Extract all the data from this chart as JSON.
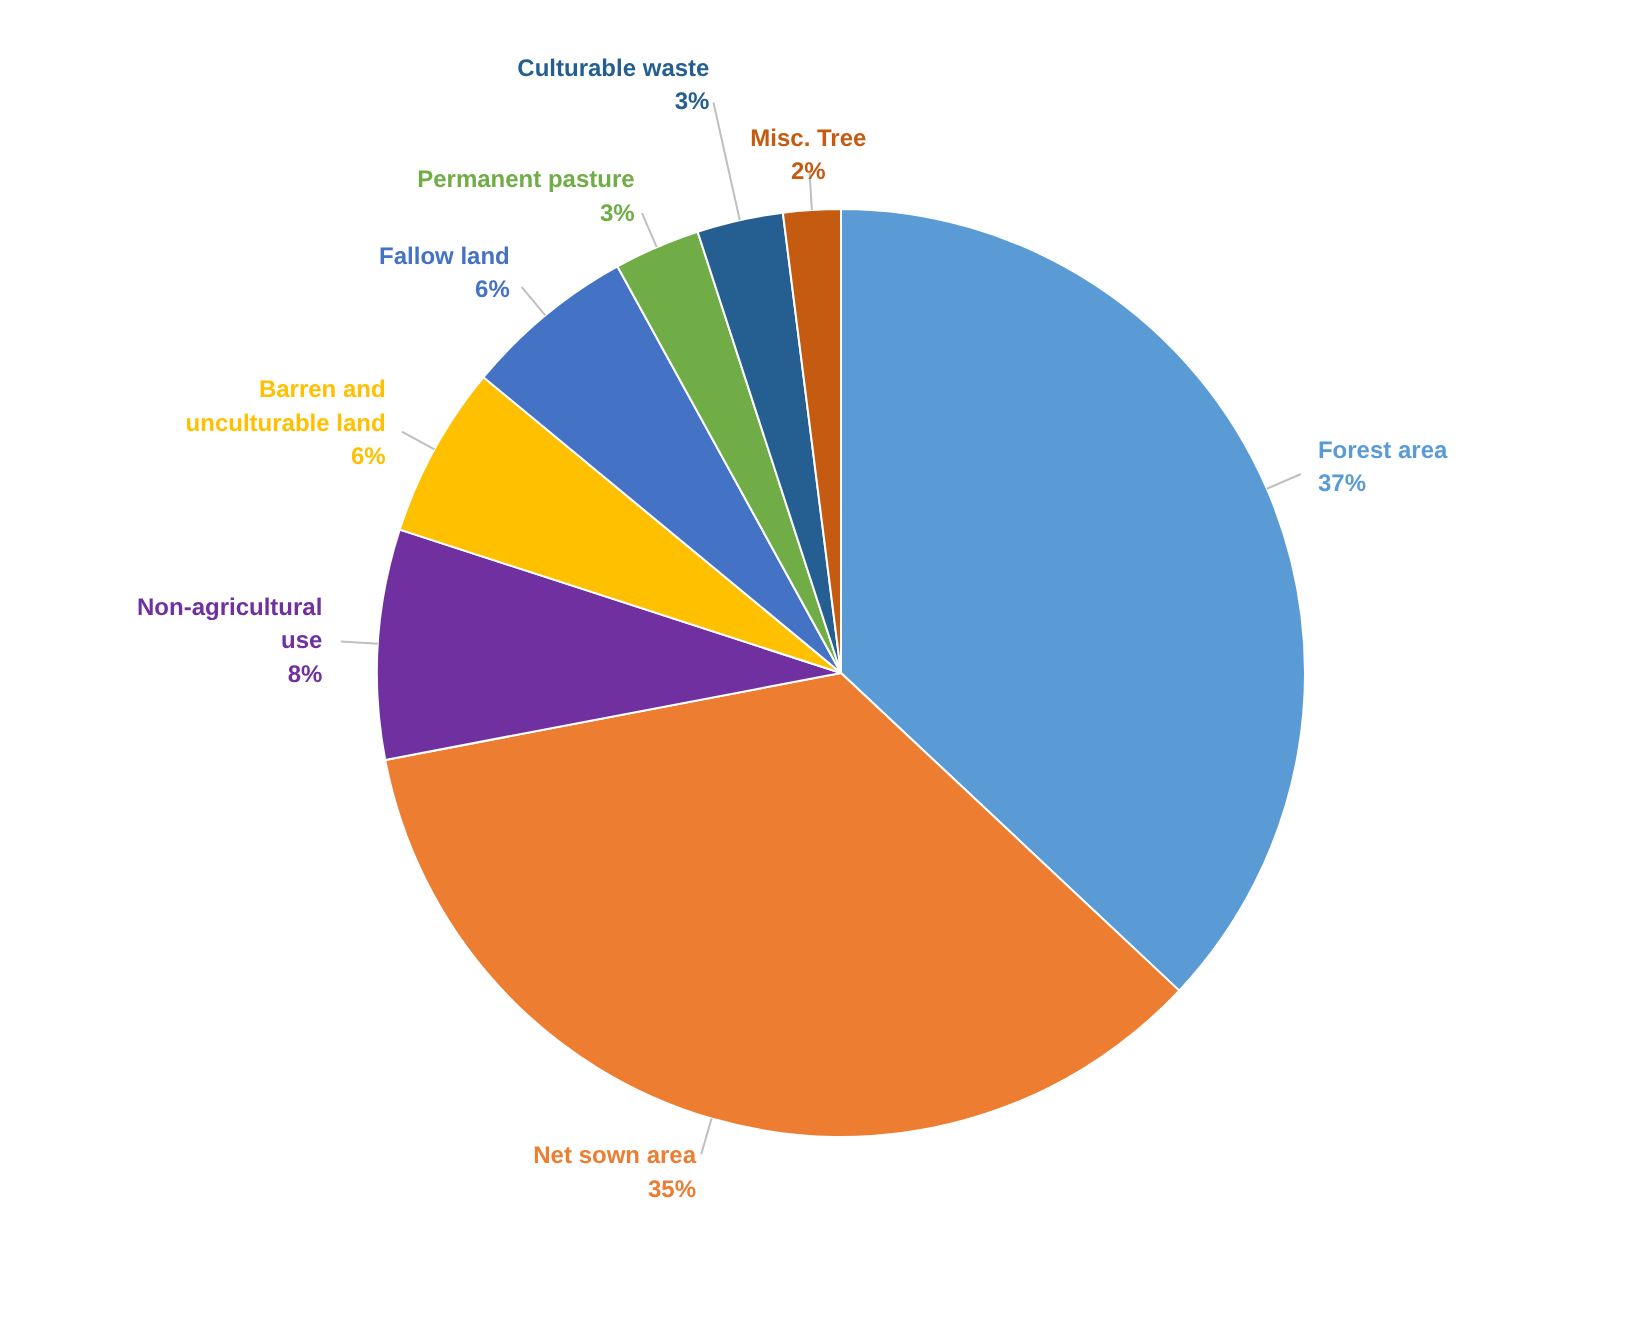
{
  "chart_data": {
    "type": "pie",
    "categories": [
      "Forest area",
      "Net sown area",
      "Non-agricultural use",
      "Barren and unculturable land",
      "Fallow land",
      "Permanent pasture",
      "Culturable waste",
      "Misc. Tree"
    ],
    "values": [
      37,
      35,
      8,
      6,
      6,
      3,
      3,
      2
    ],
    "colors": [
      "#5b9bd5",
      "#ed7d31",
      "#7030a0",
      "#ffc000",
      "#4472c4",
      "#70ad47",
      "#255e91",
      "#c55a11"
    ],
    "value_labels": [
      "37%",
      "35%",
      "8%",
      "6%",
      "6%",
      "3%",
      "3%",
      "2%"
    ]
  }
}
